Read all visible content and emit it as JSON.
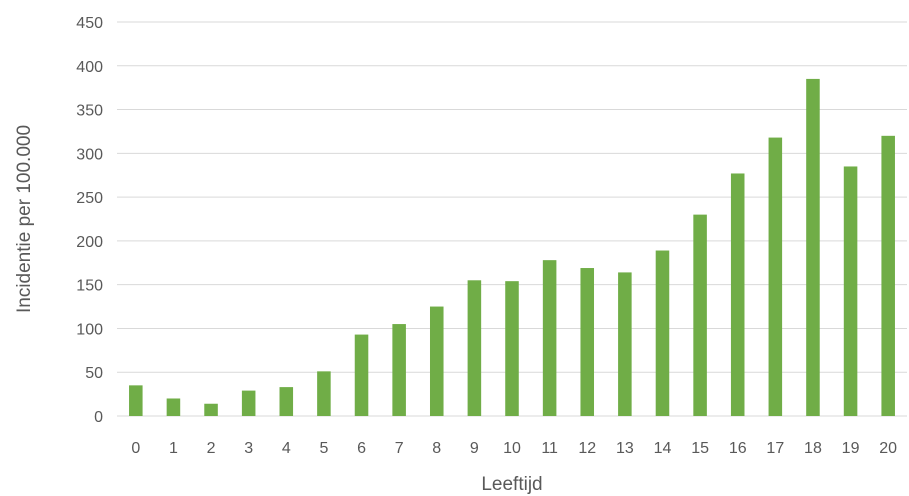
{
  "chart_data": {
    "type": "bar",
    "title": "",
    "xlabel": "Leeftijd",
    "ylabel": "Incidentie per 100.000",
    "categories": [
      "0",
      "1",
      "2",
      "3",
      "4",
      "5",
      "6",
      "7",
      "8",
      "9",
      "10",
      "11",
      "12",
      "13",
      "14",
      "15",
      "16",
      "17",
      "18",
      "19",
      "20"
    ],
    "series": [
      {
        "values": [
          35,
          20,
          14,
          29,
          33,
          51,
          93,
          105,
          125,
          155,
          154,
          178,
          169,
          164,
          189,
          230,
          277,
          318,
          385,
          285,
          320
        ]
      }
    ],
    "ylim": [
      0,
      450
    ],
    "yticks": [
      "0",
      "50",
      "100",
      "150",
      "200",
      "250",
      "300",
      "350",
      "400",
      "450"
    ],
    "grid": true,
    "legend": "none",
    "bar_color": "#70ad47",
    "grid_color": "#d9d9d9",
    "text_color": "#595959"
  }
}
